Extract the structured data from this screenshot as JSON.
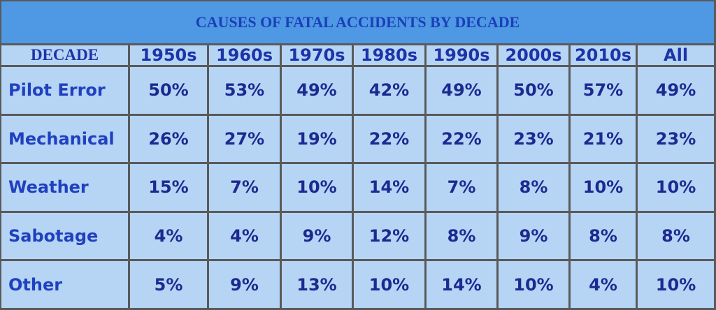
{
  "chart_data": {
    "type": "table",
    "title": "CAUSES OF FATAL ACCIDENTS BY DECADE",
    "corner_label": "DECADE",
    "columns": [
      "1950s",
      "1960s",
      "1970s",
      "1980s",
      "1990s",
      "2000s",
      "2010s",
      "All"
    ],
    "rows": [
      {
        "label": "Pilot Error",
        "values": [
          "50%",
          "53%",
          "49%",
          "42%",
          "49%",
          "50%",
          "57%",
          "49%"
        ]
      },
      {
        "label": "Mechanical",
        "values": [
          "26%",
          "27%",
          "19%",
          "22%",
          "22%",
          "23%",
          "21%",
          "23%"
        ]
      },
      {
        "label": "Weather",
        "values": [
          "15%",
          "7%",
          "10%",
          "14%",
          "7%",
          "8%",
          "10%",
          "10%"
        ]
      },
      {
        "label": "Sabotage",
        "values": [
          "4%",
          "4%",
          "9%",
          "12%",
          "8%",
          "9%",
          "8%",
          "8%"
        ]
      },
      {
        "label": "Other",
        "values": [
          "5%",
          "9%",
          "13%",
          "10%",
          "14%",
          "10%",
          "4%",
          "10%"
        ]
      }
    ]
  },
  "colors": {
    "title_bg": "#4e98e4",
    "cell_bg": "#b6d5f5",
    "text": "#1d33a8",
    "border": "#5a5a5a"
  }
}
